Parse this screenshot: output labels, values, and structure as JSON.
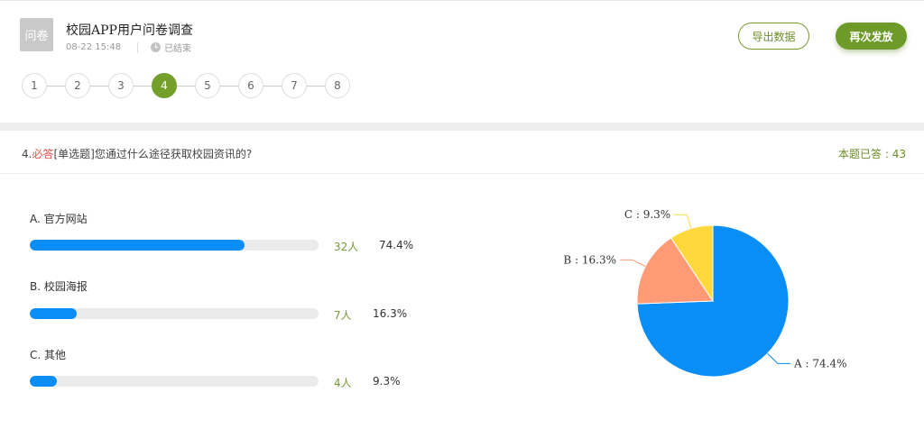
{
  "header": {
    "badge": "问卷",
    "title": "校园APP用户问卷调查",
    "date": "08-22 15:48",
    "status": "已结束",
    "export_label": "导出数据",
    "resend_label": "再次发放"
  },
  "steps": [
    "1",
    "2",
    "3",
    "4",
    "5",
    "6",
    "7",
    "8"
  ],
  "active_step": "4",
  "question": {
    "number": "4.",
    "required": "必答",
    "type": "[单选题]",
    "text": "您通过什么途径获取校园资讯的?",
    "answered": "本题已答 : 43"
  },
  "options": [
    {
      "label": "A. 官方网站",
      "count": "32人",
      "percent": "74.4%",
      "fraction": 0.744
    },
    {
      "label": "B. 校园海报",
      "count": "7人",
      "percent": "16.3%",
      "fraction": 0.163
    },
    {
      "label": "C. 其他",
      "count": "4人",
      "percent": "9.3%",
      "fraction": 0.093
    }
  ],
  "chart_data": {
    "type": "pie",
    "categories": [
      "A",
      "B",
      "C"
    ],
    "values": [
      74.4,
      16.3,
      9.3
    ],
    "labels": [
      "A : 74.4%",
      "B : 16.3%",
      "C : 9.3%"
    ],
    "colors": [
      "#0a8df5",
      "#ff9a76",
      "#ffd83b"
    ]
  },
  "colors": {
    "accent": "#739f2a",
    "bar": "#0a8df5",
    "required": "#e5534b"
  }
}
